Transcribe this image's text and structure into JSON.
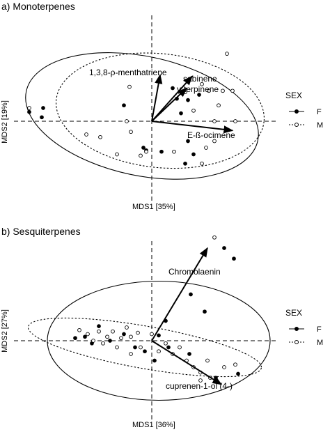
{
  "chart_data": [
    {
      "type": "scatter",
      "title": "a) Monoterpenes",
      "xlabel": "MDS1 [35%]",
      "ylabel": "MDS2 [19%]",
      "xlim": [
        -1.0,
        1.0
      ],
      "ylim": [
        -0.8,
        0.8
      ],
      "grid": false,
      "legend": {
        "title": "SEX",
        "placement": "right",
        "entries": [
          "F",
          "M"
        ]
      },
      "series": [
        {
          "name": "F",
          "marker": "filled",
          "points": [
            [
              -0.88,
              0.07
            ],
            [
              -0.78,
              0.1
            ],
            [
              -0.79,
              0.03
            ],
            [
              -0.2,
              0.12
            ],
            [
              0.07,
              -0.23
            ],
            [
              0.15,
              0.25
            ],
            [
              0.18,
              0.17
            ],
            [
              0.26,
              0.16
            ],
            [
              0.21,
              0.06
            ],
            [
              0.26,
              -0.15
            ],
            [
              0.24,
              -0.32
            ],
            [
              0.34,
              0.2
            ],
            [
              0.3,
              -0.25
            ],
            [
              -0.06,
              -0.2
            ],
            [
              -0.04,
              -0.22
            ]
          ]
        },
        {
          "name": "M",
          "marker": "hollow",
          "points": [
            [
              -0.88,
              0.1
            ],
            [
              -0.47,
              -0.1
            ],
            [
              -0.37,
              -0.12
            ],
            [
              -0.25,
              -0.25
            ],
            [
              -0.18,
              0.0
            ],
            [
              -0.15,
              -0.08
            ],
            [
              -0.16,
              0.26
            ],
            [
              -0.08,
              -0.26
            ],
            [
              0.16,
              -0.23
            ],
            [
              0.24,
              0.22
            ],
            [
              0.3,
              0.08
            ],
            [
              0.36,
              0.28
            ],
            [
              0.36,
              -0.32
            ],
            [
              0.39,
              -0.2
            ],
            [
              0.41,
              0.23
            ],
            [
              0.45,
              -0.15
            ],
            [
              0.48,
              0.12
            ],
            [
              0.51,
              0.23
            ],
            [
              0.6,
              0.0
            ],
            [
              0.58,
              0.23
            ],
            [
              0.54,
              0.51
            ],
            [
              -0.04,
              -0.23
            ],
            [
              0.45,
              0.0
            ]
          ]
        }
      ],
      "vectors": [
        {
          "label": "1,3,8-ρ-menthatriene",
          "end": [
            0.06,
            0.35
          ]
        },
        {
          "label": "sabinene",
          "end": [
            0.29,
            0.34
          ]
        },
        {
          "label": "γ-terpinene",
          "end": [
            0.25,
            0.25
          ]
        },
        {
          "label": "E-ß-ocimene",
          "end": [
            0.58,
            -0.07
          ]
        }
      ],
      "ellipses": [
        {
          "group": "F",
          "style": "solid",
          "center": [
            -0.07,
            0.04
          ],
          "radii": [
            0.85,
            0.45
          ],
          "angle": -12
        },
        {
          "group": "M",
          "style": "dotted",
          "center": [
            0.06,
            0.08
          ],
          "radii": [
            0.75,
            0.43
          ],
          "angle": -6
        }
      ]
    },
    {
      "type": "scatter",
      "title": "b) Sesquiterpenes",
      "xlabel": "MDS1 [36%]",
      "ylabel": "MDS2 [27%]",
      "xlim": [
        -1.0,
        1.0
      ],
      "ylim": [
        -0.8,
        0.8
      ],
      "grid": false,
      "legend": {
        "title": "SEX",
        "placement": "right",
        "entries": [
          "F",
          "M"
        ]
      },
      "series": [
        {
          "name": "F",
          "marker": "filled",
          "points": [
            [
              -0.55,
              0.02
            ],
            [
              -0.48,
              0.03
            ],
            [
              -0.38,
              0.11
            ],
            [
              -0.3,
              0.0
            ],
            [
              -0.2,
              0.05
            ],
            [
              -0.12,
              -0.05
            ],
            [
              -0.05,
              -0.08
            ],
            [
              0.05,
              0.04
            ],
            [
              0.1,
              0.15
            ],
            [
              0.27,
              -0.1
            ],
            [
              0.28,
              0.35
            ],
            [
              0.38,
              0.22
            ],
            [
              0.46,
              -0.28
            ],
            [
              0.52,
              0.7
            ],
            [
              0.59,
              0.62
            ],
            [
              0.62,
              -0.25
            ],
            [
              -0.43,
              -0.02
            ],
            [
              0.02,
              -0.15
            ],
            [
              0.12,
              -0.05
            ]
          ]
        },
        {
          "name": "M",
          "marker": "hollow",
          "points": [
            [
              -0.52,
              0.08
            ],
            [
              -0.46,
              0.05
            ],
            [
              -0.42,
              0.0
            ],
            [
              -0.38,
              0.07
            ],
            [
              -0.35,
              -0.02
            ],
            [
              -0.32,
              0.03
            ],
            [
              -0.28,
              0.07
            ],
            [
              -0.25,
              -0.05
            ],
            [
              -0.22,
              0.02
            ],
            [
              -0.18,
              0.1
            ],
            [
              -0.15,
              0.03
            ],
            [
              -0.1,
              0.06
            ],
            [
              -0.08,
              -0.05
            ],
            [
              0.0,
              0.05
            ],
            [
              0.05,
              -0.08
            ],
            [
              0.1,
              -0.02
            ],
            [
              0.15,
              -0.1
            ],
            [
              0.2,
              -0.05
            ],
            [
              0.25,
              -0.15
            ],
            [
              0.3,
              -0.2
            ],
            [
              0.35,
              -0.24
            ],
            [
              0.42,
              -0.28
            ],
            [
              0.52,
              -0.2
            ],
            [
              0.45,
              0.78
            ],
            [
              0.35,
              -0.3
            ],
            [
              0.4,
              -0.15
            ],
            [
              -0.15,
              -0.1
            ],
            [
              0.6,
              -0.18
            ]
          ]
        }
      ],
      "vectors": [
        {
          "label": "Chromolaenin",
          "end": [
            0.4,
            0.7
          ]
        },
        {
          "label": "cuprenen-1-ol (4-)",
          "end": [
            0.5,
            -0.33
          ]
        }
      ],
      "ellipses": [
        {
          "group": "F",
          "style": "solid",
          "center": [
            0.05,
            0.0
          ],
          "radii": [
            0.8,
            0.45
          ],
          "angle": 0
        },
        {
          "group": "M",
          "style": "dotted",
          "center": [
            -0.05,
            -0.05
          ],
          "radii": [
            0.85,
            0.16
          ],
          "angle": -10
        }
      ]
    }
  ]
}
